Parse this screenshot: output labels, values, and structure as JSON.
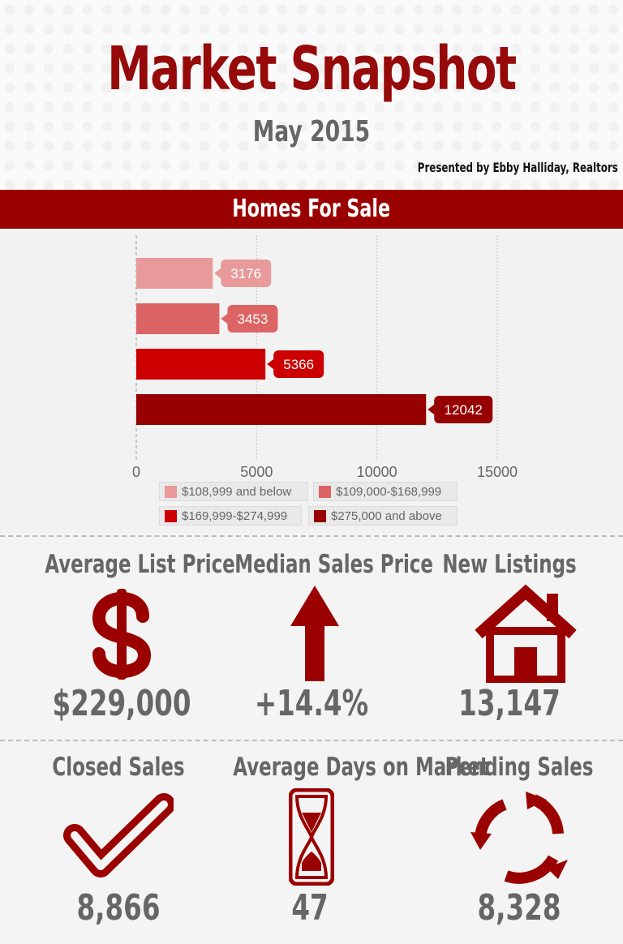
{
  "header": {
    "title": "Market Snapshot",
    "subtitle": "May 2015",
    "presented_by": "Presented by Ebby Halliday, Realtors"
  },
  "section": {
    "title": "Homes For Sale"
  },
  "colors": {
    "brand": "#9b0000",
    "series": [
      "#e89a9a",
      "#dd6464",
      "#cc0000",
      "#960000"
    ]
  },
  "chart_data": {
    "type": "bar",
    "orientation": "horizontal",
    "title": "Homes For Sale",
    "categories": [
      "$108,999 and below",
      "$109,000-$168,999",
      "$169,999-$274,999",
      "$275,000 and above"
    ],
    "values": [
      3176,
      3453,
      5366,
      12042
    ],
    "value_labels": [
      "3176",
      "3453",
      "5366",
      "12042"
    ],
    "xlim": [
      0,
      15000
    ],
    "xticks": [
      "0",
      "5000",
      "10000",
      "15000"
    ],
    "grid": true,
    "legend_position": "bottom"
  },
  "stats": [
    {
      "label": "Average List Price",
      "value": "$229,000",
      "icon": "dollar-icon"
    },
    {
      "label": "Median Sales Price",
      "value": "+14.4%",
      "icon": "up-arrow-icon"
    },
    {
      "label": "New Listings",
      "value": "13,147",
      "icon": "house-icon"
    },
    {
      "label": "Closed Sales",
      "value": "8,866",
      "icon": "checkmark-icon"
    },
    {
      "label": "Average Days on Market",
      "value": "47",
      "icon": "hourglass-icon"
    },
    {
      "label": "Pending Sales",
      "value": "8,328",
      "icon": "recycle-arrows-icon"
    }
  ]
}
